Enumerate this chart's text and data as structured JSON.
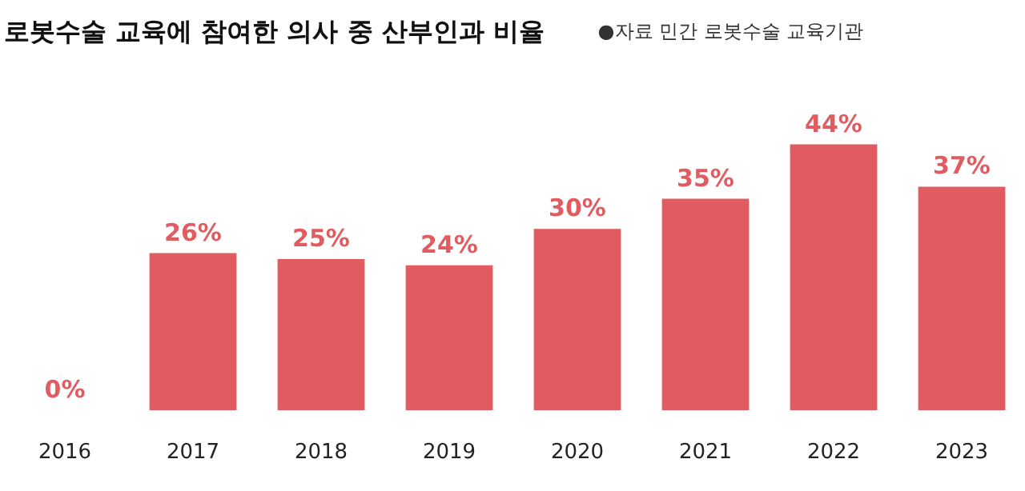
{
  "chart_data": {
    "type": "bar",
    "title": "로봇수술 교육에 참여한 의사 중 산부인과 비율",
    "annotations": [
      "●자료 민간 로봇수술 교육기관"
    ],
    "categories": [
      "2016",
      "2017",
      "2018",
      "2019",
      "2020",
      "2021",
      "2022",
      "2023"
    ],
    "values": [
      0,
      26,
      25,
      24,
      30,
      35,
      44,
      37
    ],
    "color": "#e05c61",
    "value_labels": [
      "0%",
      "26%",
      "25%",
      "24%",
      "30%",
      "35%",
      "44%",
      "37%"
    ],
    "grid": false
  }
}
